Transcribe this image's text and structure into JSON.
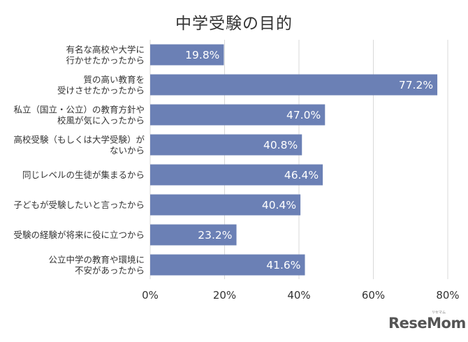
{
  "chart_data": {
    "type": "bar",
    "orientation": "horizontal",
    "title": "中学受験の目的",
    "categories": [
      [
        "有名な高校や大学に",
        "行かせたかったから"
      ],
      [
        "質の高い教育を",
        "受けさせたかったから"
      ],
      [
        "私立（国立・公立）の教育方針や",
        "校風が気に入ったから"
      ],
      [
        "高校受験（もしくは大学受験）が",
        "ないから"
      ],
      [
        "同じレベルの生徒が集まるから"
      ],
      [
        "子どもが受験したいと言ったから"
      ],
      [
        "受験の経験が将来に役に立つから"
      ],
      [
        "公立中学の教育や環境に",
        "不安があったから"
      ]
    ],
    "values": [
      19.8,
      77.2,
      47.0,
      40.8,
      46.4,
      40.4,
      23.2,
      41.6
    ],
    "value_labels": [
      "19.8%",
      "77.2%",
      "47.0%",
      "40.8%",
      "46.4%",
      "40.4%",
      "23.2%",
      "41.6%"
    ],
    "xlim": [
      0,
      80
    ],
    "ticks": [
      0,
      20,
      40,
      60,
      80
    ],
    "tick_labels": [
      "0%",
      "20%",
      "40%",
      "60%",
      "80%"
    ],
    "grid": "vertical",
    "bar_color": "#6b80b5",
    "grid_color": "#d9d9d9"
  },
  "logo": {
    "text": "ReseMom",
    "kana": "リセマム"
  }
}
